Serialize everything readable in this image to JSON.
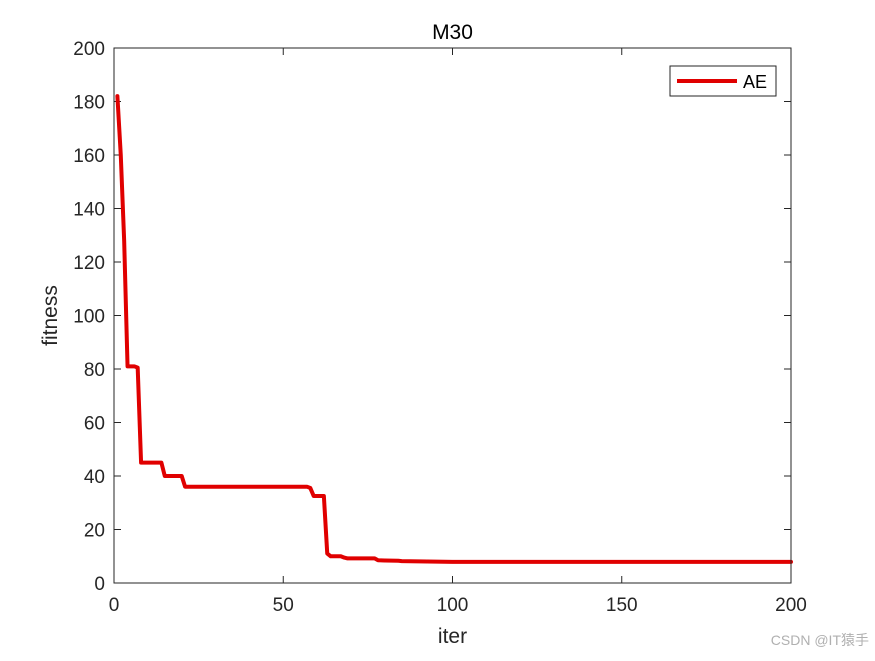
{
  "chart_data": {
    "type": "line",
    "title": "M30",
    "xlabel": "iter",
    "ylabel": "fitness",
    "xlim": [
      0,
      200
    ],
    "ylim": [
      0,
      200
    ],
    "xticks": [
      0,
      50,
      100,
      150,
      200
    ],
    "yticks": [
      0,
      20,
      40,
      60,
      80,
      100,
      120,
      140,
      160,
      180,
      200
    ],
    "grid": false,
    "legend": {
      "position": "top-right",
      "entries": [
        "AE"
      ]
    },
    "series": [
      {
        "name": "AE",
        "color": "#e00000",
        "x": [
          1,
          2,
          3,
          4,
          5,
          6,
          7,
          8,
          9,
          10,
          11,
          12,
          13,
          14,
          15,
          16,
          17,
          18,
          19,
          20,
          21,
          22,
          30,
          40,
          50,
          57,
          58,
          59,
          60,
          61,
          62,
          63,
          64,
          65,
          66,
          67,
          68,
          69,
          70,
          75,
          77,
          78,
          80,
          84,
          85,
          90,
          95,
          100,
          120,
          150,
          200
        ],
        "y": [
          182,
          160,
          128,
          81,
          81,
          81,
          80.5,
          45,
          45,
          45,
          45,
          45,
          45,
          45,
          40,
          40,
          40,
          40,
          40,
          40,
          36,
          36,
          36,
          36,
          36,
          36,
          35.5,
          32.5,
          32.5,
          32.5,
          32.5,
          11,
          10,
          10,
          10,
          10,
          9.5,
          9.2,
          9.2,
          9.2,
          9.2,
          8.5,
          8.4,
          8.3,
          8.2,
          8.1,
          8.0,
          7.9,
          7.9,
          7.9,
          7.9
        ]
      }
    ]
  },
  "watermark": "CSDN @IT猿手"
}
